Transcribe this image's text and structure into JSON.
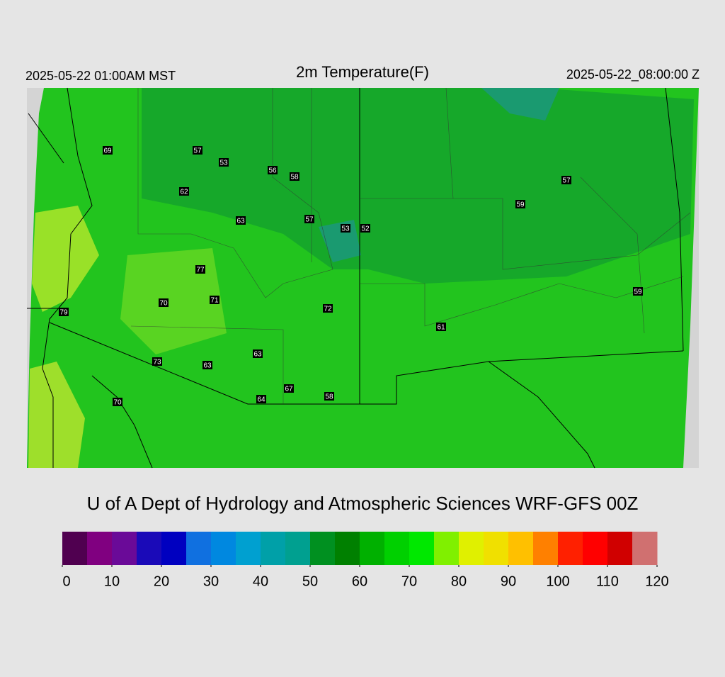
{
  "header": {
    "left": "2025-05-22 01:00AM MST",
    "title": "2m Temperature(F)",
    "right": "2025-05-22_08:00:00 Z"
  },
  "stations": [
    69,
    57,
    53,
    56,
    58,
    62,
    63,
    57,
    53,
    52,
    57,
    59,
    77,
    70,
    71,
    72,
    79,
    59,
    61,
    63,
    73,
    63,
    67,
    64,
    58,
    70
  ],
  "credit": "U of A Dept of Hydrology and Atmospheric Sciences WRF-GFS 00Z",
  "colorbar": {
    "lim": [
      0,
      120
    ],
    "ticks": [
      0,
      10,
      20,
      30,
      40,
      50,
      60,
      70,
      80,
      90,
      100,
      110,
      120
    ],
    "colors": [
      "#500050",
      "#800080",
      "#6a0a98",
      "#1a0ab8",
      "#0000c0",
      "#1070e0",
      "#0088e0",
      "#00a0d0",
      "#00a0a8",
      "#00a090",
      "#009020",
      "#008000",
      "#00b000",
      "#00d000",
      "#00e800",
      "#80f000",
      "#e0f000",
      "#f0e000",
      "#ffc000",
      "#ff8000",
      "#ff2000",
      "#ff0000",
      "#d00000",
      "#d07070"
    ]
  }
}
